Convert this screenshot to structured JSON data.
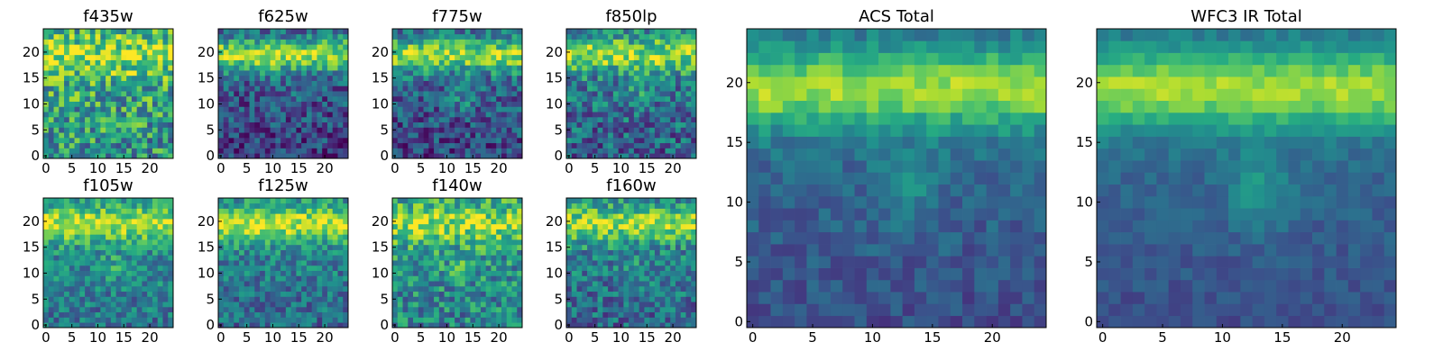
{
  "chart_data": [
    {
      "type": "heatmap",
      "title": "f435w",
      "xticks": [
        0,
        5,
        10,
        15,
        20
      ],
      "yticks": [
        0,
        5,
        10,
        15,
        20
      ],
      "xlim": [
        0,
        24
      ],
      "ylim": [
        0,
        24
      ],
      "grid": false,
      "colormap": "viridis"
    },
    {
      "type": "heatmap",
      "title": "f625w",
      "xticks": [
        0,
        5,
        10,
        15,
        20
      ],
      "yticks": [
        0,
        5,
        10,
        15,
        20
      ],
      "xlim": [
        0,
        24
      ],
      "ylim": [
        0,
        24
      ],
      "grid": false,
      "colormap": "viridis"
    },
    {
      "type": "heatmap",
      "title": "f775w",
      "xticks": [
        0,
        5,
        10,
        15,
        20
      ],
      "yticks": [
        0,
        5,
        10,
        15,
        20
      ],
      "xlim": [
        0,
        24
      ],
      "ylim": [
        0,
        24
      ],
      "grid": false,
      "colormap": "viridis"
    },
    {
      "type": "heatmap",
      "title": "f850lp",
      "xticks": [
        0,
        5,
        10,
        15,
        20
      ],
      "yticks": [
        0,
        5,
        10,
        15,
        20
      ],
      "xlim": [
        0,
        24
      ],
      "ylim": [
        0,
        24
      ],
      "grid": false,
      "colormap": "viridis"
    },
    {
      "type": "heatmap",
      "title": "f105w",
      "xticks": [
        0,
        5,
        10,
        15,
        20
      ],
      "yticks": [
        0,
        5,
        10,
        15,
        20
      ],
      "xlim": [
        0,
        24
      ],
      "ylim": [
        0,
        24
      ],
      "grid": false,
      "colormap": "viridis"
    },
    {
      "type": "heatmap",
      "title": "f125w",
      "xticks": [
        0,
        5,
        10,
        15,
        20
      ],
      "yticks": [
        0,
        5,
        10,
        15,
        20
      ],
      "xlim": [
        0,
        24
      ],
      "ylim": [
        0,
        24
      ],
      "grid": false,
      "colormap": "viridis"
    },
    {
      "type": "heatmap",
      "title": "f140w",
      "xticks": [
        0,
        5,
        10,
        15,
        20
      ],
      "yticks": [
        0,
        5,
        10,
        15,
        20
      ],
      "xlim": [
        0,
        24
      ],
      "ylim": [
        0,
        24
      ],
      "grid": false,
      "colormap": "viridis"
    },
    {
      "type": "heatmap",
      "title": "f160w",
      "xticks": [
        0,
        5,
        10,
        15,
        20
      ],
      "yticks": [
        0,
        5,
        10,
        15,
        20
      ],
      "xlim": [
        0,
        24
      ],
      "ylim": [
        0,
        24
      ],
      "grid": false,
      "colormap": "viridis"
    },
    {
      "type": "heatmap",
      "title": "ACS Total",
      "xticks": [
        0,
        5,
        10,
        15,
        20
      ],
      "yticks": [
        0,
        5,
        10,
        15,
        20
      ],
      "xlim": [
        0,
        24
      ],
      "ylim": [
        0,
        24
      ],
      "grid": false,
      "colormap": "viridis"
    },
    {
      "type": "heatmap",
      "title": "WFC3 IR Total",
      "xticks": [
        0,
        5,
        10,
        15,
        20
      ],
      "yticks": [
        0,
        5,
        10,
        15,
        20
      ],
      "xlim": [
        0,
        24
      ],
      "ylim": [
        0,
        24
      ],
      "grid": false,
      "colormap": "viridis"
    }
  ]
}
